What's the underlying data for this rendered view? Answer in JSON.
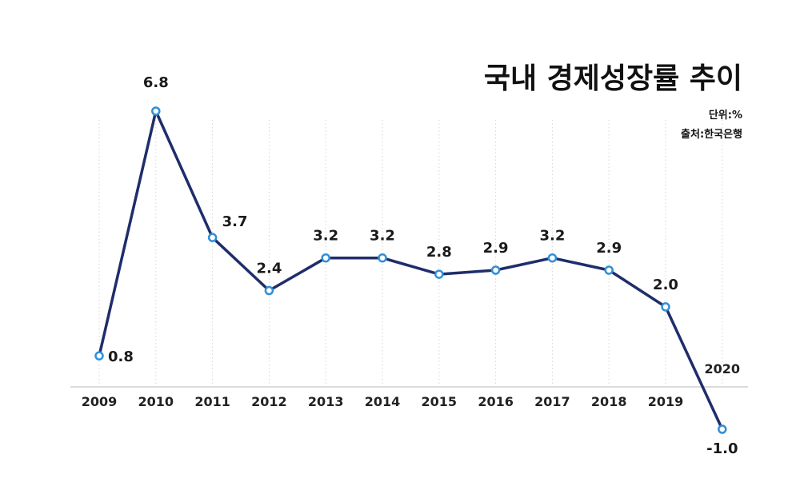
{
  "chart_data": {
    "type": "line",
    "title": "국내 경제성장률 추이",
    "unit_note": "단위:%",
    "source_note": "출처:한국은행",
    "categories": [
      "2009",
      "2010",
      "2011",
      "2012",
      "2013",
      "2014",
      "2015",
      "2016",
      "2017",
      "2018",
      "2019",
      "2020"
    ],
    "series": [
      {
        "values": [
          0.8,
          6.8,
          3.7,
          2.4,
          3.2,
          3.2,
          2.8,
          2.9,
          3.2,
          2.9,
          2.0,
          -1.0
        ],
        "labels": [
          "0.8",
          "6.8",
          "3.7",
          "2.4",
          "3.2",
          "3.2",
          "2.8",
          "2.9",
          "3.2",
          "2.9",
          "2.0",
          "-1.0"
        ]
      }
    ],
    "ylim": [
      -1.0,
      6.8
    ],
    "grid": "vertical-dotted",
    "colors": {
      "line": "#1f2d6b",
      "marker_fill": "#ffffff",
      "marker_stroke": "#2f8fd8",
      "grid": "#d6d6d6",
      "baseline": "#cfcfcf"
    }
  }
}
